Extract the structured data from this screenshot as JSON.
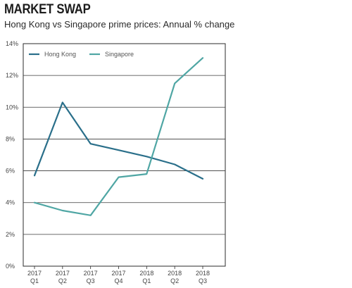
{
  "header": {
    "title": "MARKET SWAP",
    "subtitle": "Hong Kong vs Singapore prime prices: Annual % change"
  },
  "chart_data": {
    "type": "line",
    "title": "MARKET SWAP",
    "subtitle": "Hong Kong vs Singapore prime prices: Annual % change",
    "xlabel": "",
    "ylabel": "",
    "categories": [
      [
        "2017",
        "Q1"
      ],
      [
        "2017",
        "Q2"
      ],
      [
        "2017",
        "Q3"
      ],
      [
        "2017",
        "Q4"
      ],
      [
        "2018",
        "Q1"
      ],
      [
        "2018",
        "Q2"
      ],
      [
        "2018",
        "Q3"
      ]
    ],
    "y_ticks": [
      0,
      2,
      4,
      6,
      8,
      10,
      12,
      14
    ],
    "y_tick_labels": [
      "0%",
      "2%",
      "4%",
      "6%",
      "8%",
      "10%",
      "12%",
      "14%"
    ],
    "ylim": [
      0,
      14
    ],
    "grid": "horizontal",
    "legend_position": "top-left",
    "series": [
      {
        "name": "Hong Kong",
        "color": "#2a6f8a",
        "values": [
          5.7,
          10.3,
          7.7,
          7.3,
          6.9,
          6.4,
          5.5
        ]
      },
      {
        "name": "Singapore",
        "color": "#4fa6a4",
        "values": [
          4.0,
          3.5,
          3.2,
          5.6,
          5.8,
          11.5,
          13.1
        ]
      }
    ]
  }
}
